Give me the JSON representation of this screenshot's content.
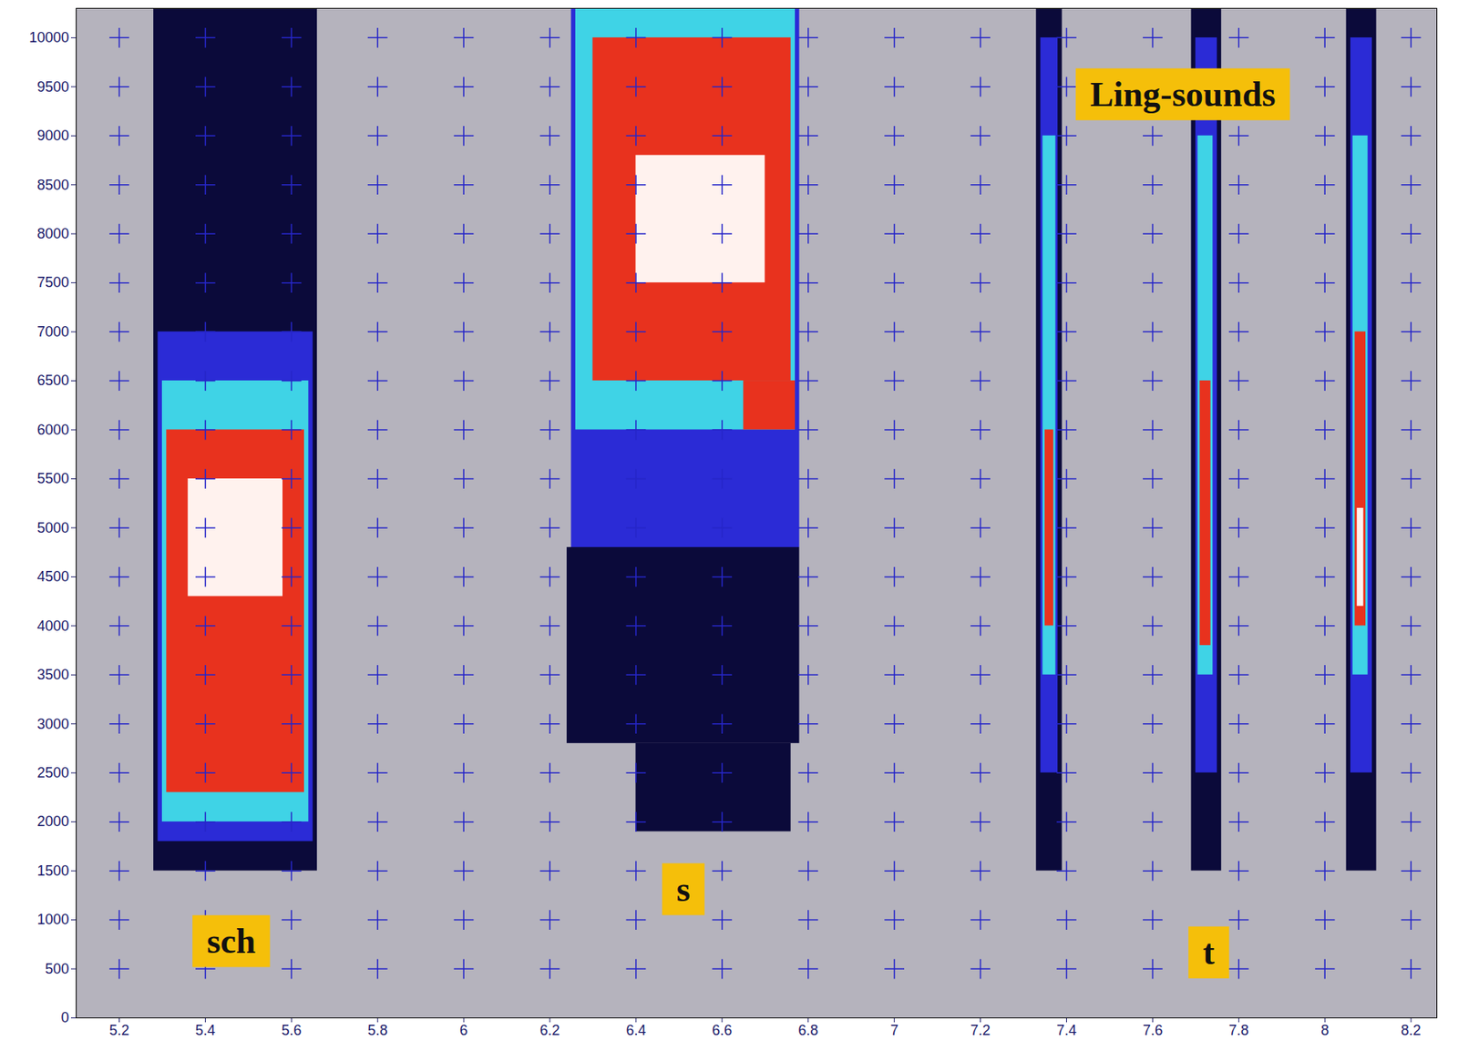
{
  "chart_data": {
    "type": "heatmap",
    "xlim": [
      5.1,
      8.26
    ],
    "ylim": [
      0,
      10300
    ],
    "xticks": [
      5.2,
      5.4,
      5.6,
      5.8,
      6,
      6.2,
      6.4,
      6.6,
      6.8,
      7,
      7.2,
      7.4,
      7.6,
      7.8,
      8,
      8.2
    ],
    "yticks": [
      0,
      500,
      1000,
      1500,
      2000,
      2500,
      3000,
      3500,
      4000,
      4500,
      5000,
      5500,
      6000,
      6500,
      7000,
      7500,
      8000,
      8500,
      9000,
      9500,
      10000
    ],
    "grid": true,
    "cells": [
      {
        "x0": 5.28,
        "x1": 5.66,
        "y0": 1500,
        "y1": 10300,
        "level": 1
      },
      {
        "x0": 5.29,
        "x1": 5.65,
        "y0": 1800,
        "y1": 7000,
        "level": 2
      },
      {
        "x0": 5.3,
        "x1": 5.64,
        "y0": 2000,
        "y1": 6500,
        "level": 3
      },
      {
        "x0": 5.31,
        "x1": 5.63,
        "y0": 2300,
        "y1": 6000,
        "level": 4
      },
      {
        "x0": 5.36,
        "x1": 5.58,
        "y0": 4300,
        "y1": 5500,
        "level": 5
      },
      {
        "x0": 6.24,
        "x1": 6.78,
        "y0": 2800,
        "y1": 4800,
        "level": 1
      },
      {
        "x0": 6.4,
        "x1": 6.76,
        "y0": 1900,
        "y1": 2800,
        "level": 1
      },
      {
        "x0": 6.25,
        "x1": 6.78,
        "y0": 4800,
        "y1": 10300,
        "level": 2
      },
      {
        "x0": 6.26,
        "x1": 6.77,
        "y0": 6000,
        "y1": 10300,
        "level": 3
      },
      {
        "x0": 6.3,
        "x1": 6.76,
        "y0": 6500,
        "y1": 10000,
        "level": 4
      },
      {
        "x0": 6.65,
        "x1": 6.77,
        "y0": 6000,
        "y1": 6500,
        "level": 4
      },
      {
        "x0": 6.4,
        "x1": 6.7,
        "y0": 7500,
        "y1": 8800,
        "level": 5
      },
      {
        "x0": 7.33,
        "x1": 7.39,
        "y0": 1500,
        "y1": 10300,
        "level": 1
      },
      {
        "x0": 7.34,
        "x1": 7.38,
        "y0": 2500,
        "y1": 10000,
        "level": 2
      },
      {
        "x0": 7.345,
        "x1": 7.375,
        "y0": 3500,
        "y1": 9000,
        "level": 3
      },
      {
        "x0": 7.35,
        "x1": 7.37,
        "y0": 4000,
        "y1": 6000,
        "level": 4
      },
      {
        "x0": 7.69,
        "x1": 7.76,
        "y0": 1500,
        "y1": 10300,
        "level": 1
      },
      {
        "x0": 7.7,
        "x1": 7.75,
        "y0": 2500,
        "y1": 10000,
        "level": 2
      },
      {
        "x0": 7.705,
        "x1": 7.74,
        "y0": 3500,
        "y1": 9000,
        "level": 3
      },
      {
        "x0": 7.71,
        "x1": 7.735,
        "y0": 3800,
        "y1": 6500,
        "level": 4
      },
      {
        "x0": 8.05,
        "x1": 8.12,
        "y0": 1500,
        "y1": 10300,
        "level": 1
      },
      {
        "x0": 8.06,
        "x1": 8.11,
        "y0": 2500,
        "y1": 10000,
        "level": 2
      },
      {
        "x0": 8.065,
        "x1": 8.1,
        "y0": 3500,
        "y1": 9000,
        "level": 3
      },
      {
        "x0": 8.07,
        "x1": 8.095,
        "y0": 4000,
        "y1": 7000,
        "level": 4
      },
      {
        "x0": 8.075,
        "x1": 8.09,
        "y0": 4200,
        "y1": 5200,
        "level": 5
      }
    ],
    "annotations": [
      {
        "text": "sch",
        "x": 5.46,
        "y": 780
      },
      {
        "text": "s",
        "x": 6.51,
        "y": 1310
      },
      {
        "text": "t",
        "x": 7.73,
        "y": 665
      },
      {
        "text": "Ling-sounds",
        "x": 7.67,
        "y": 9420
      }
    ]
  }
}
